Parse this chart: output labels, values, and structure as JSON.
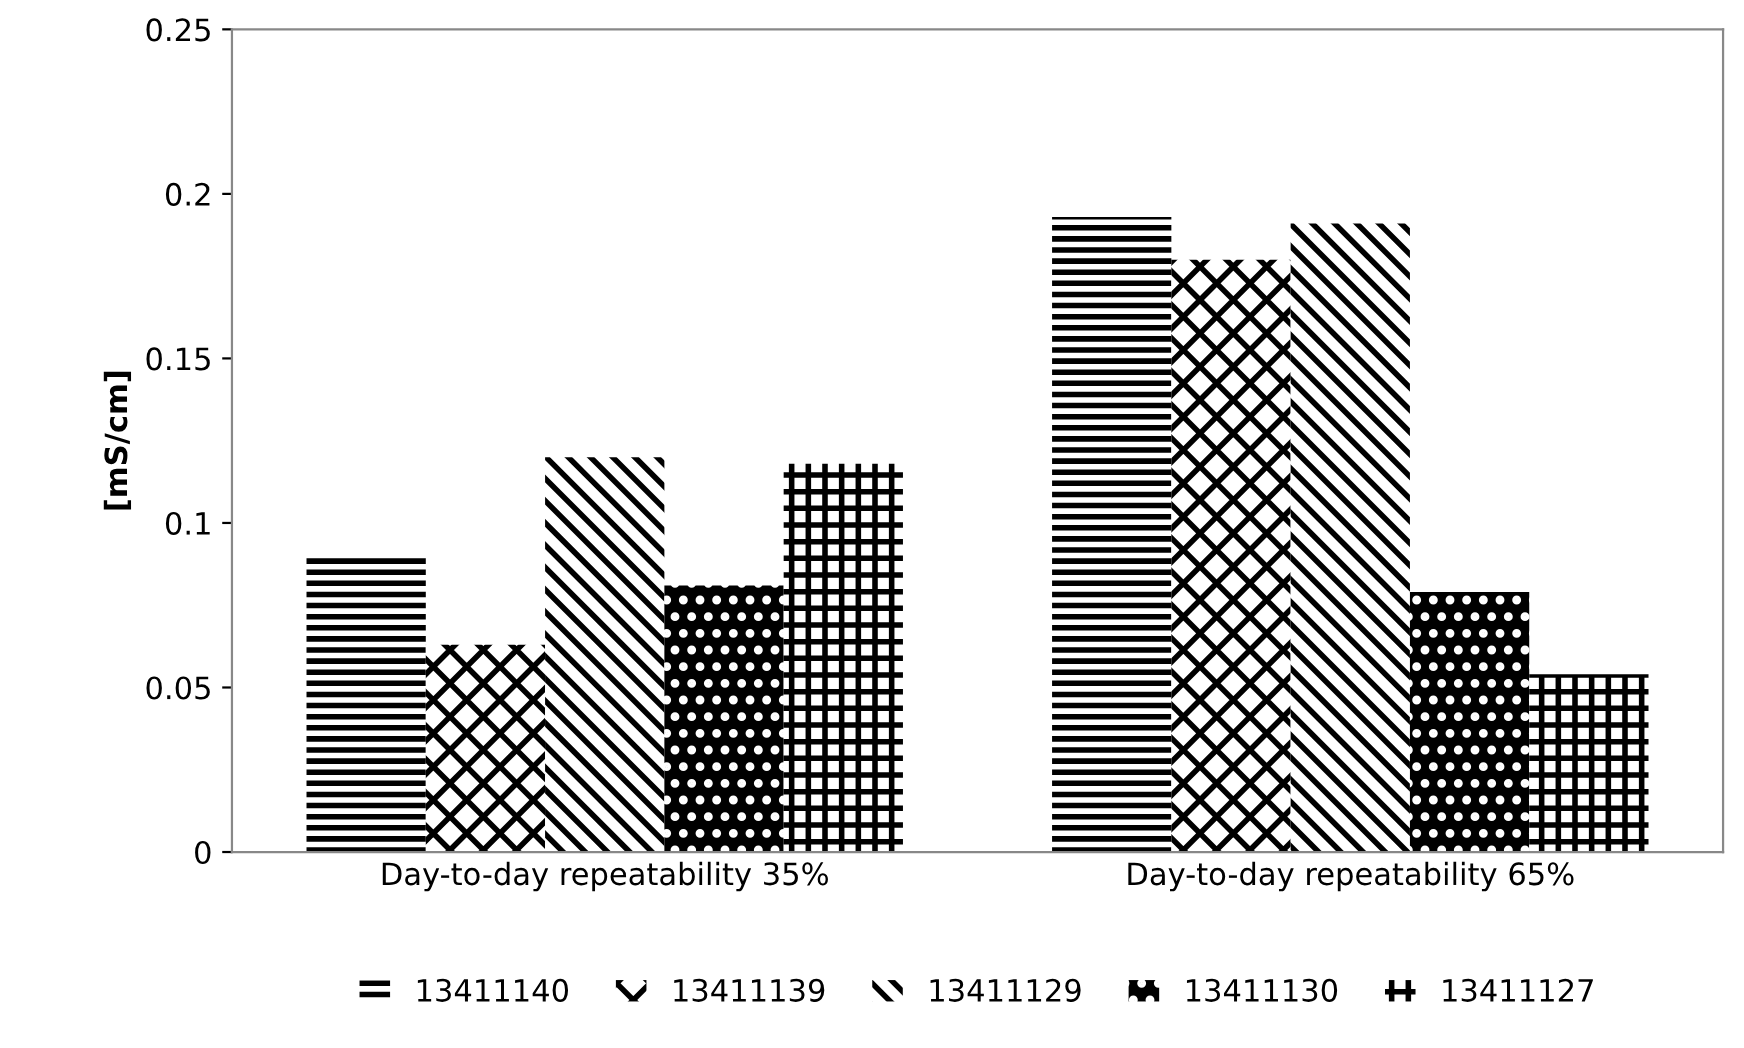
{
  "chart_data": {
    "type": "bar",
    "ylabel": "[mS/cm]",
    "categories": [
      "Day-to-day repeatability 35%",
      "Day-to-day repeatability 65%"
    ],
    "series": [
      {
        "name": "13411140",
        "color": "#000000",
        "values": [
          0.09,
          0.193
        ]
      },
      {
        "name": "13411139",
        "color": "#000000",
        "values": [
          0.063,
          0.18
        ]
      },
      {
        "name": "13411129",
        "color": "#000000",
        "values": [
          0.12,
          0.191
        ]
      },
      {
        "name": "13411130",
        "color": "#000000",
        "values": [
          0.081,
          0.079
        ]
      },
      {
        "name": "13411127",
        "color": "#000000",
        "values": [
          0.118,
          0.054
        ]
      }
    ],
    "ylim": [
      0,
      0.25
    ],
    "yticks": [
      0,
      0.05,
      0.1,
      0.15,
      0.2,
      0.25
    ],
    "grid": false,
    "legend": "bottom"
  }
}
